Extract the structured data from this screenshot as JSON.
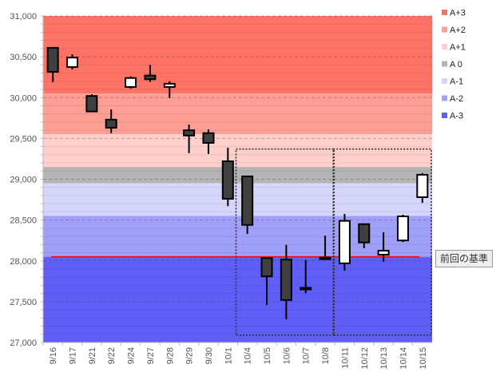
{
  "chart_data": {
    "type": "candlestick",
    "title": "",
    "xlabel": "",
    "ylabel": "",
    "ylim": [
      27000,
      31000
    ],
    "yticks": [
      27000,
      27500,
      28000,
      28500,
      29000,
      29500,
      30000,
      30500,
      31000
    ],
    "ytick_labels": [
      "27,000",
      "27,500",
      "28,000",
      "28,500",
      "29,000",
      "29,500",
      "30,000",
      "30,500",
      "31,000"
    ],
    "grid": "dashed major every 500, minor every 100",
    "categories": [
      "9/16",
      "9/17",
      "9/21",
      "9/22",
      "9/24",
      "9/27",
      "9/28",
      "9/29",
      "9/30",
      "10/1",
      "10/4",
      "10/5",
      "10/6",
      "10/7",
      "10/8",
      "10/11",
      "10/12",
      "10/13",
      "10/14",
      "10/15"
    ],
    "ohlc": [
      {
        "o": 30610,
        "h": 30610,
        "l": 30190,
        "c": 30315
      },
      {
        "o": 30375,
        "h": 30530,
        "l": 30345,
        "c": 30490
      },
      {
        "o": 30020,
        "h": 30040,
        "l": 29830,
        "c": 29830
      },
      {
        "o": 29730,
        "h": 29855,
        "l": 29565,
        "c": 29630
      },
      {
        "o": 30130,
        "h": 30260,
        "l": 30110,
        "c": 30240
      },
      {
        "o": 30270,
        "h": 30400,
        "l": 30190,
        "c": 30225
      },
      {
        "o": 30130,
        "h": 30200,
        "l": 29995,
        "c": 30170
      },
      {
        "o": 29600,
        "h": 29670,
        "l": 29320,
        "c": 29535
      },
      {
        "o": 29565,
        "h": 29610,
        "l": 29310,
        "c": 29445
      },
      {
        "o": 29220,
        "h": 29385,
        "l": 28670,
        "c": 28760
      },
      {
        "o": 29035,
        "h": 29035,
        "l": 28330,
        "c": 28440
      },
      {
        "o": 28035,
        "h": 28035,
        "l": 27460,
        "c": 27810
      },
      {
        "o": 28015,
        "h": 28195,
        "l": 27285,
        "c": 27520
      },
      {
        "o": 27670,
        "h": 28010,
        "l": 27605,
        "c": 27655
      },
      {
        "o": 28040,
        "h": 28310,
        "l": 28020,
        "c": 28020
      },
      {
        "o": 27970,
        "h": 28575,
        "l": 27880,
        "c": 28490
      },
      {
        "o": 28450,
        "h": 28450,
        "l": 28155,
        "c": 28225
      },
      {
        "o": 28075,
        "h": 28350,
        "l": 27990,
        "c": 28125
      },
      {
        "o": 28250,
        "h": 28565,
        "l": 28230,
        "c": 28545
      },
      {
        "o": 28780,
        "h": 29075,
        "l": 28710,
        "c": 29055
      }
    ],
    "bands": [
      {
        "name": "A+3",
        "from": 30050,
        "to": 31000,
        "color": "#ff7366"
      },
      {
        "name": "A+2",
        "from": 29550,
        "to": 30050,
        "color": "#ff9e94"
      },
      {
        "name": "A+1",
        "from": 29150,
        "to": 29550,
        "color": "#ffd0cb"
      },
      {
        "name": "A 0",
        "from": 28950,
        "to": 29150,
        "color": "#b4b4b4"
      },
      {
        "name": "A-1",
        "from": 28550,
        "to": 28950,
        "color": "#d6d6fc"
      },
      {
        "name": "A-2",
        "from": 28050,
        "to": 28550,
        "color": "#a0a0fa"
      },
      {
        "name": "A-3",
        "from": 27000,
        "to": 28050,
        "color": "#5f5ff7"
      }
    ],
    "legend_position": "right",
    "reference_line": {
      "value": 28050,
      "label": "前回の基準",
      "color": "#ff0000"
    },
    "highlight_boxes": [
      {
        "from": "10/4",
        "to": "10/8",
        "low": 27090,
        "high": 29370
      },
      {
        "from": "10/11",
        "to": "10/15",
        "low": 27090,
        "high": 29370
      }
    ],
    "colors": {
      "down": "#404040",
      "up": "#ffffff",
      "outline": "#000000"
    }
  }
}
